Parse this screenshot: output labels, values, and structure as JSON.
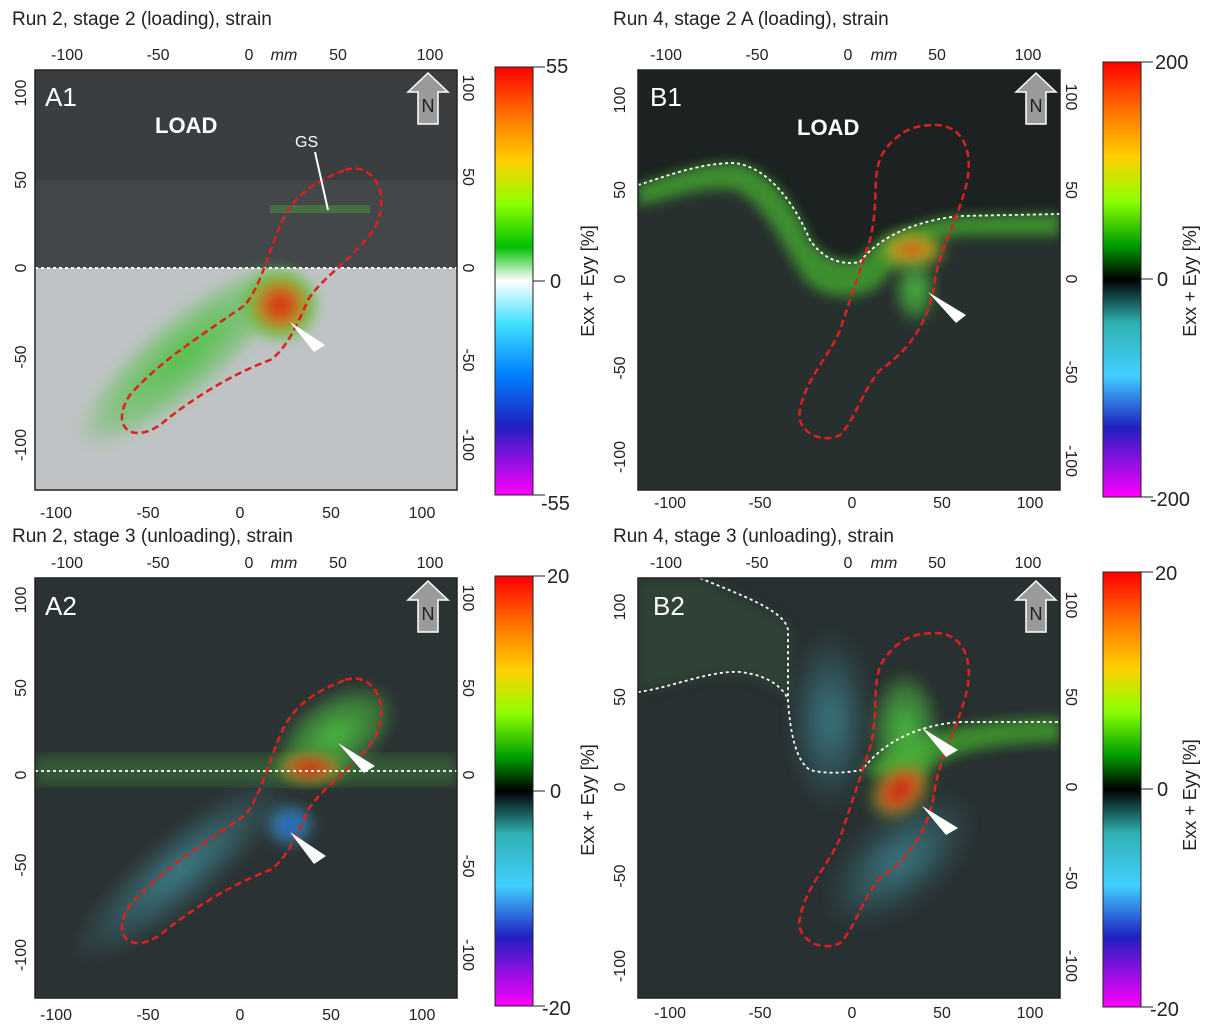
{
  "panels": [
    {
      "id": "A1",
      "title": "Run 2, stage 2 (loading),  strain",
      "label": "A1",
      "load_label": "LOAD",
      "gs_label": "GS",
      "colorbar": {
        "max": "55",
        "mid": "0",
        "min": "-55",
        "axis_label": "Exx + Eyy [%]"
      },
      "unit_label": "mm"
    },
    {
      "id": "B1",
      "title": "Run 4, stage 2 A (loading), strain",
      "label": "B1",
      "load_label": "LOAD",
      "colorbar": {
        "max": "200",
        "mid": "0",
        "min": "-200",
        "axis_label": "Exx + Eyy [%]"
      },
      "unit_label": "mm"
    },
    {
      "id": "A2",
      "title": "Run 2, stage 3 (unloading),  strain",
      "label": "A2",
      "colorbar": {
        "max": "20",
        "mid": "0",
        "min": "-20",
        "axis_label": "Exx + Eyy [%]"
      },
      "unit_label": "mm"
    },
    {
      "id": "B2",
      "title": "Run 4, stage 3 (unloading), strain",
      "label": "B2",
      "colorbar": {
        "max": "20",
        "mid": "0",
        "min": "-20",
        "axis_label": "Exx + Eyy [%]"
      },
      "unit_label": "mm"
    }
  ],
  "north_label": "N",
  "axis_ticks": {
    "x_bottom": [
      "-100",
      "-50",
      "0",
      "50",
      "100"
    ],
    "x_top": [
      "-100",
      "-50",
      "0",
      "50",
      "100"
    ],
    "y_left": [
      "100",
      "50",
      "0",
      "-50",
      "-100"
    ],
    "y_right": [
      "100",
      "50",
      "0",
      "-50",
      "-100"
    ]
  },
  "colors": {
    "outline": "#e02020",
    "interface_line": "#ffffff",
    "background_dark": "#2a2f30",
    "background_gray": "#b8bcbe"
  }
}
